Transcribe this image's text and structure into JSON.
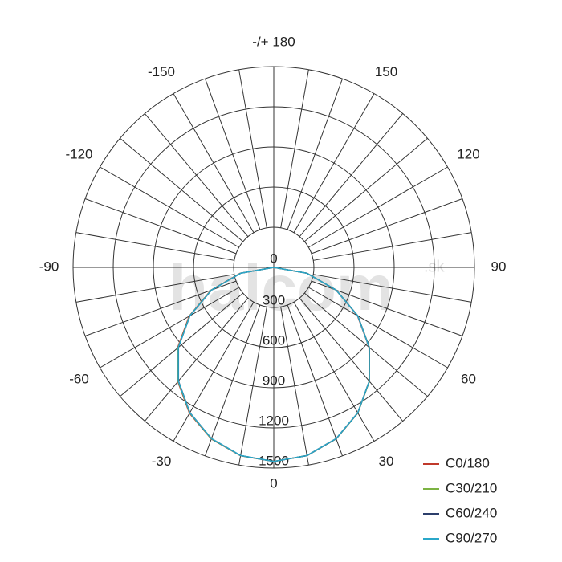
{
  "chart_data": {
    "type": "polar",
    "watermark": "halcom",
    "watermark_suffix": ".sk",
    "rlim": [
      0,
      1500
    ],
    "rticks": [
      0,
      300,
      600,
      900,
      1200,
      1500
    ],
    "thetaticks": [
      {
        "value": 180,
        "label": "-/+ 180"
      },
      -150,
      -120,
      -90,
      -60,
      -30,
      0,
      30,
      60,
      90,
      120,
      150
    ],
    "thetagrid": [
      -170,
      -160,
      -150,
      -140,
      -130,
      -120,
      -110,
      -100,
      -90,
      -80,
      -70,
      -60,
      -50,
      -40,
      -30,
      -20,
      -10,
      0,
      10,
      20,
      30,
      40,
      50,
      60,
      70,
      80,
      90,
      100,
      110,
      120,
      130,
      140,
      150,
      160,
      170,
      180
    ],
    "x": [
      -90,
      -80,
      -70,
      -60,
      -50,
      -40,
      -30,
      -20,
      -10,
      0,
      10,
      20,
      30,
      40,
      50,
      60,
      70,
      80,
      90
    ],
    "series": [
      {
        "name": "C0/180",
        "color": "#c0392b",
        "values": [
          0,
          255,
          500,
          730,
          940,
          1115,
          1260,
          1365,
          1430,
          1450,
          1428,
          1362,
          1255,
          1110,
          930,
          722,
          494,
          250,
          0
        ]
      },
      {
        "name": "C30/210",
        "color": "#7cb342",
        "values": [
          0,
          252,
          497,
          726,
          934,
          1112,
          1257,
          1364,
          1429,
          1450,
          1429,
          1364,
          1257,
          1112,
          934,
          726,
          497,
          252,
          0
        ]
      },
      {
        "name": "C60/240",
        "color": "#2c3e6b",
        "values": [
          0,
          250,
          494,
          723,
          930,
          1108,
          1254,
          1362,
          1428,
          1450,
          1429,
          1363,
          1256,
          1111,
          933,
          726,
          497,
          252,
          0
        ]
      },
      {
        "name": "C90/270",
        "color": "#2aa7c9",
        "values": [
          0,
          250,
          495,
          724,
          931,
          1110,
          1255,
          1362,
          1428,
          1450,
          1428,
          1362,
          1255,
          1110,
          931,
          724,
          495,
          250,
          0
        ]
      }
    ],
    "legend": "lower right"
  }
}
